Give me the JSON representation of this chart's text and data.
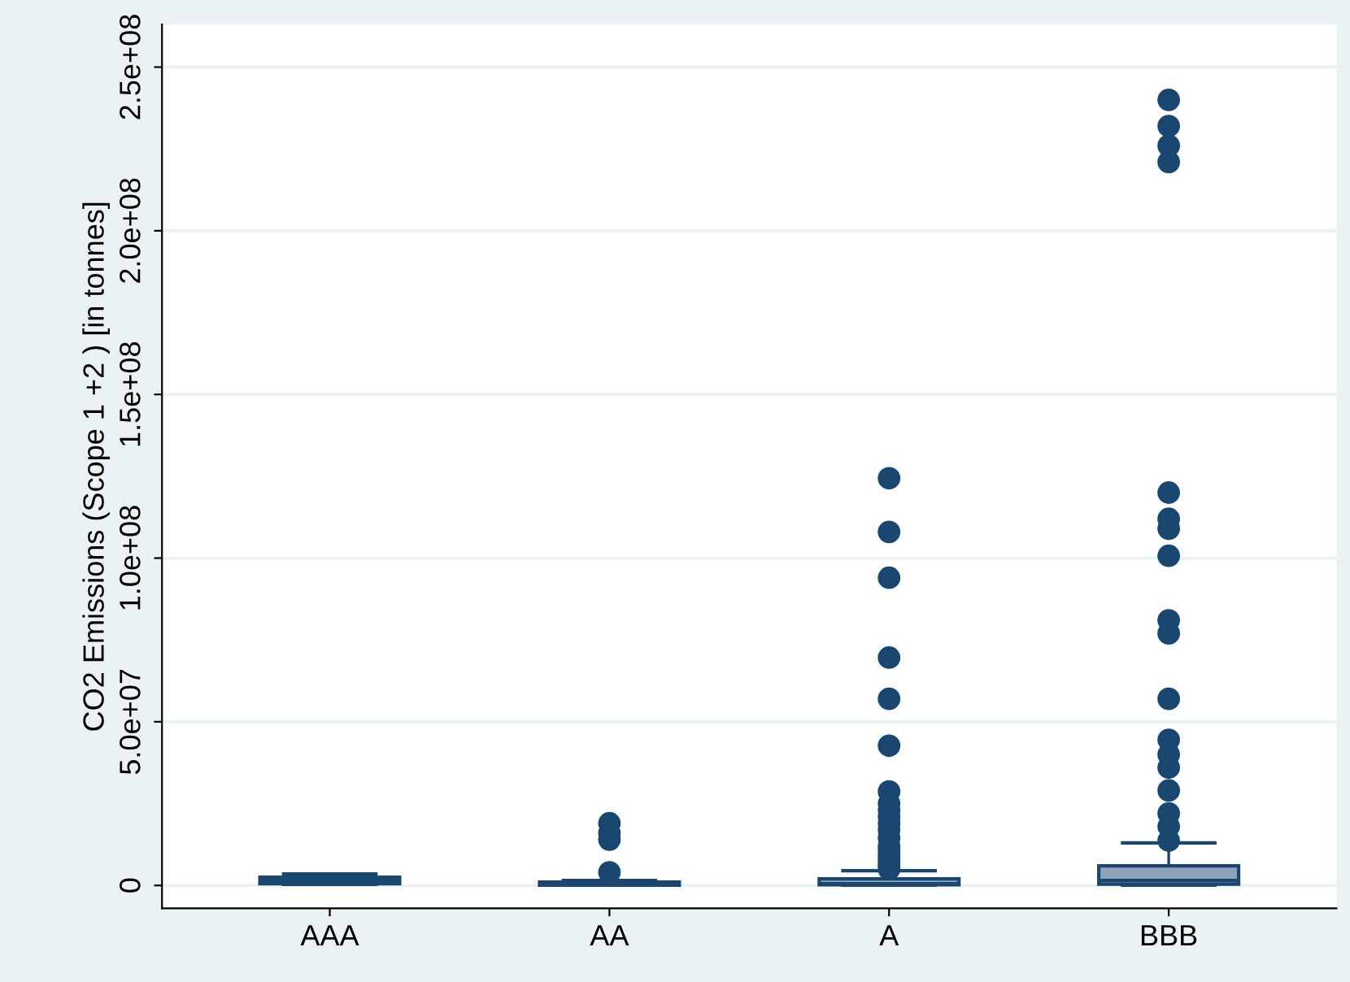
{
  "chart_data": {
    "type": "box",
    "ylabel": "CO2 Emissions (Scope 1 +2 ) [in tonnes]",
    "categories": [
      "AAA",
      "AA",
      "A",
      "BBB"
    ],
    "boxes": [
      {
        "low": 300000,
        "q1": 500000,
        "median": 1500000,
        "q3": 2500000,
        "high": 3500000
      },
      {
        "low": 50000,
        "q1": 100000,
        "median": 300000,
        "q3": 1000000,
        "high": 1500000,
        "outliers": [
          4000000,
          14000000,
          16000000,
          19000000
        ]
      },
      {
        "low": 50000,
        "q1": 200000,
        "median": 500000,
        "q3": 2000000,
        "high": 4500000,
        "outliers": [
          5000000,
          6000000,
          7000000,
          8000000,
          9400000,
          11000000,
          12000000,
          14500000,
          17000000,
          19000000,
          21000000,
          23000000,
          25000000,
          28700000,
          42700000,
          57000000,
          69600000,
          94000000,
          108000000,
          124400000
        ]
      },
      {
        "low": 100000,
        "q1": 400000,
        "median": 1500000,
        "q3": 6000000,
        "high": 13000000,
        "outliers": [
          13700000,
          18000000,
          22000000,
          29000000,
          36000000,
          40000000,
          44500000,
          57000000,
          77000000,
          81000000,
          100700000,
          109000000,
          112000000,
          120000000,
          221000000,
          226000000,
          232000000,
          240000000
        ]
      }
    ],
    "color": "#1a476f",
    "ylim": [
      -7000000,
      263000000
    ],
    "yticks": [
      {
        "value": 0,
        "label": "0"
      },
      {
        "value": 50000000,
        "label": "5.0e+07"
      },
      {
        "value": 100000000,
        "label": "1.0e+08"
      },
      {
        "value": 150000000,
        "label": "1.5e+08"
      },
      {
        "value": 200000000,
        "label": "2.0e+08"
      },
      {
        "value": 250000000,
        "label": "2.5e+08"
      }
    ],
    "grid": "y"
  }
}
